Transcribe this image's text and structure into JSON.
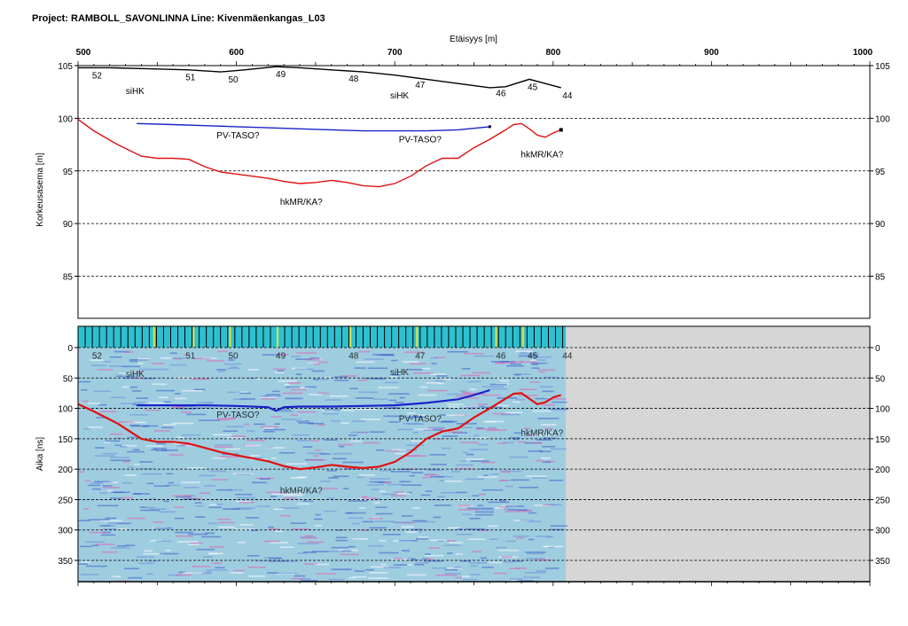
{
  "title": "Project: RAMBOLL_SAVONLINNA  Line: Kivenmäenkangas_L03",
  "colors": {
    "surface": "#000000",
    "pv_taso": "#1a22c8",
    "hkmr": "#e01010",
    "radar_background": "#9fcde0",
    "empty_area": "#d6d6d6",
    "marker_line": "#e8e040"
  },
  "chart_data": [
    {
      "type": "line",
      "name": "elevation-profile",
      "xlabel": "Etäisyys [m]",
      "ylabel": "Korkeusasema [m]",
      "xlim": [
        500,
        1000
      ],
      "ylim": [
        81,
        105
      ],
      "xticks": [
        500,
        600,
        700,
        800,
        900,
        1000
      ],
      "yticks": [
        105,
        100,
        95,
        90,
        85
      ],
      "grid": true,
      "series": [
        {
          "x": [
            500,
            520,
            545,
            570,
            590,
            605,
            625,
            640,
            660,
            680,
            700,
            720,
            740,
            760,
            770,
            785,
            795,
            805
          ],
          "y": [
            104.8,
            104.8,
            104.7,
            104.6,
            104.4,
            104.6,
            104.9,
            104.8,
            104.6,
            104.4,
            104.1,
            103.7,
            103.3,
            102.9,
            103.0,
            103.7,
            103.3,
            102.9
          ]
        },
        {
          "x": [
            537,
            560,
            580,
            600,
            620,
            640,
            660,
            680,
            700,
            720,
            740,
            760
          ],
          "y": [
            99.5,
            99.4,
            99.3,
            99.2,
            99.1,
            99.0,
            98.9,
            98.8,
            98.8,
            98.8,
            98.9,
            99.2
          ]
        },
        {
          "x": [
            500,
            510,
            525,
            540,
            550,
            560,
            570,
            580,
            590,
            600,
            610,
            620,
            630,
            640,
            650,
            660,
            670,
            680,
            690,
            700,
            710,
            720,
            730,
            740,
            750,
            760,
            770,
            775,
            780,
            785,
            790,
            795,
            800,
            805
          ],
          "y": [
            99.9,
            98.8,
            97.5,
            96.4,
            96.2,
            96.2,
            96.1,
            95.4,
            94.9,
            94.7,
            94.5,
            94.3,
            94.0,
            93.8,
            93.9,
            94.1,
            93.9,
            93.6,
            93.5,
            93.8,
            94.5,
            95.5,
            96.2,
            96.2,
            97.2,
            98.0,
            98.9,
            99.4,
            99.5,
            99.0,
            98.4,
            98.2,
            98.6,
            98.9
          ]
        }
      ],
      "annotations": [
        {
          "text": "52",
          "x": 512,
          "y": 103.8
        },
        {
          "text": "51",
          "x": 571,
          "y": 103.6
        },
        {
          "text": "50",
          "x": 598,
          "y": 103.4
        },
        {
          "text": "49",
          "x": 628,
          "y": 103.9
        },
        {
          "text": "48",
          "x": 674,
          "y": 103.5
        },
        {
          "text": "47",
          "x": 716,
          "y": 102.9
        },
        {
          "text": "46",
          "x": 767,
          "y": 102.1
        },
        {
          "text": "45",
          "x": 787,
          "y": 102.7
        },
        {
          "text": "44",
          "x": 809,
          "y": 101.9
        },
        {
          "text": "siHK",
          "x": 536,
          "y": 102.3
        },
        {
          "text": "siHK",
          "x": 703,
          "y": 101.9
        },
        {
          "text": "PV-TASO?",
          "x": 601,
          "y": 98.1
        },
        {
          "text": "PV-TASO?",
          "x": 716,
          "y": 97.7
        },
        {
          "text": "hkMR/KA?",
          "x": 793,
          "y": 96.3
        },
        {
          "text": "hkMR/KA?",
          "x": 641,
          "y": 91.8
        }
      ]
    },
    {
      "type": "heatmap",
      "name": "radargram",
      "ylabel": "Aika [ns]",
      "xlim": [
        500,
        1000
      ],
      "ylim": [
        -35,
        385
      ],
      "yticks": [
        0,
        50,
        100,
        150,
        200,
        250,
        300,
        350
      ],
      "data_extent_x": [
        500,
        808
      ],
      "grid": true,
      "series": [
        {
          "x": [
            537,
            560,
            580,
            600,
            620,
            625,
            630,
            640,
            660,
            680,
            700,
            720,
            740,
            750,
            760
          ],
          "y": [
            95,
            95,
            95,
            96,
            98,
            104,
            98,
            97,
            97,
            96,
            95,
            91,
            85,
            78,
            70
          ]
        },
        {
          "x": [
            500,
            510,
            525,
            540,
            550,
            560,
            570,
            580,
            590,
            600,
            610,
            620,
            630,
            640,
            650,
            660,
            670,
            680,
            690,
            700,
            710,
            720,
            730,
            740,
            750,
            760,
            770,
            775,
            780,
            785,
            790,
            795,
            800,
            805
          ],
          "y": [
            93,
            105,
            125,
            150,
            155,
            155,
            158,
            165,
            172,
            177,
            182,
            187,
            195,
            200,
            197,
            193,
            196,
            198,
            196,
            188,
            172,
            150,
            138,
            133,
            115,
            100,
            84,
            76,
            75,
            84,
            93,
            90,
            82,
            78
          ]
        }
      ],
      "markers_x": [
        548,
        573,
        596,
        626,
        672,
        714,
        764,
        781
      ],
      "annotations": [
        {
          "text": "52",
          "x": 512,
          "y": 18
        },
        {
          "text": "51",
          "x": 571,
          "y": 18
        },
        {
          "text": "50",
          "x": 598,
          "y": 18
        },
        {
          "text": "49",
          "x": 628,
          "y": 18
        },
        {
          "text": "48",
          "x": 674,
          "y": 18
        },
        {
          "text": "47",
          "x": 716,
          "y": 18
        },
        {
          "text": "46",
          "x": 767,
          "y": 18
        },
        {
          "text": "45",
          "x": 787,
          "y": 18
        },
        {
          "text": "44",
          "x": 809,
          "y": 18
        },
        {
          "text": "siHK",
          "x": 536,
          "y": 48
        },
        {
          "text": "siHK",
          "x": 703,
          "y": 45
        },
        {
          "text": "PV-TASO?",
          "x": 601,
          "y": 115
        },
        {
          "text": "PV-TASO?",
          "x": 716,
          "y": 122
        },
        {
          "text": "hkMR/KA?",
          "x": 793,
          "y": 145
        },
        {
          "text": "hkMR/KA?",
          "x": 641,
          "y": 240
        }
      ]
    }
  ]
}
